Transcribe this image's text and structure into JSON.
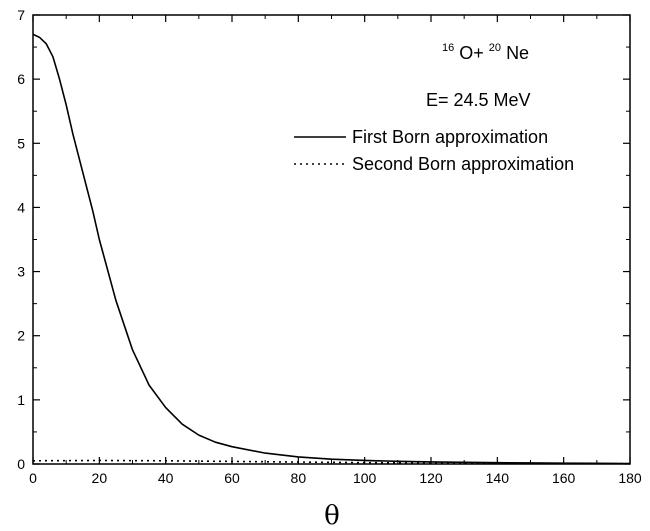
{
  "chart_data": {
    "type": "line",
    "title": "",
    "xlabel": "θ",
    "ylabel": "",
    "xlim": [
      0,
      180
    ],
    "ylim": [
      0,
      7
    ],
    "xticks": [
      0,
      20,
      40,
      60,
      80,
      100,
      120,
      140,
      160,
      180
    ],
    "yticks": [
      0,
      1,
      2,
      3,
      4,
      5,
      6,
      7
    ],
    "grid": false,
    "legend_position": "upper-right",
    "annotations": {
      "reaction": {
        "mass_a": "16",
        "nucleus_a": "O+",
        "mass_b": "20",
        "nucleus_b": "Ne"
      },
      "energy": "E= 24.5  MeV"
    },
    "series": [
      {
        "name": "First Born approximation",
        "style": "solid",
        "color": "#000000",
        "x": [
          0,
          2,
          4,
          6,
          8,
          10,
          12,
          15,
          18,
          20,
          25,
          30,
          35,
          40,
          45,
          50,
          55,
          60,
          70,
          80,
          90,
          100,
          110,
          120,
          130,
          140,
          150,
          160,
          170,
          180
        ],
        "y": [
          6.7,
          6.65,
          6.55,
          6.35,
          6.0,
          5.6,
          5.15,
          4.55,
          3.95,
          3.5,
          2.55,
          1.78,
          1.23,
          0.88,
          0.62,
          0.45,
          0.34,
          0.27,
          0.17,
          0.11,
          0.075,
          0.055,
          0.042,
          0.032,
          0.026,
          0.02,
          0.016,
          0.012,
          0.01,
          0.008
        ]
      },
      {
        "name": "Second Born approximation",
        "style": "dotted",
        "color": "#000000",
        "x": [
          0,
          20,
          40,
          60,
          80,
          100,
          120,
          140,
          160,
          180
        ],
        "y": [
          0.05,
          0.055,
          0.05,
          0.04,
          0.03,
          0.022,
          0.015,
          0.01,
          0.007,
          0.005
        ]
      }
    ]
  }
}
